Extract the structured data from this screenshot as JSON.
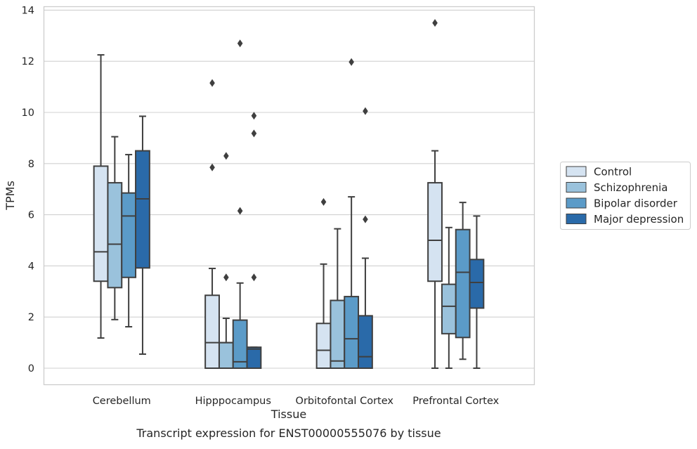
{
  "chart_data": {
    "type": "box",
    "title": "Transcript expression for ENST00000555076 by tissue",
    "xlabel": "Tissue",
    "ylabel": "TPMs",
    "ylim": [
      -0.65,
      14.15
    ],
    "yticks": [
      0,
      2,
      4,
      6,
      8,
      10,
      12,
      14
    ],
    "grid": "horizontal",
    "legend_position": "right",
    "categories": [
      "Cerebellum",
      "Hipppocampus",
      "Orbitofontal Cortex",
      "Prefrontal Cortex"
    ],
    "series": [
      {
        "name": "Control",
        "color": "#d5e3f1",
        "boxes": [
          {
            "whisker_low": 1.18,
            "q1": 3.4,
            "median": 4.55,
            "q3": 7.9,
            "whisker_high": 12.25,
            "outliers": []
          },
          {
            "whisker_low": 0,
            "q1": 0,
            "median": 1.0,
            "q3": 2.85,
            "whisker_high": 3.9,
            "outliers": [
              7.85,
              11.15
            ]
          },
          {
            "whisker_low": 0,
            "q1": 0,
            "median": 0.7,
            "q3": 1.75,
            "whisker_high": 4.07,
            "outliers": [
              6.5
            ]
          },
          {
            "whisker_low": 0,
            "q1": 3.4,
            "median": 5.0,
            "q3": 7.25,
            "whisker_high": 8.5,
            "outliers": [
              13.5
            ]
          }
        ]
      },
      {
        "name": "Schizophrenia",
        "color": "#9ac2dc",
        "boxes": [
          {
            "whisker_low": 1.9,
            "q1": 3.15,
            "median": 4.85,
            "q3": 7.25,
            "whisker_high": 9.05,
            "outliers": []
          },
          {
            "whisker_low": 0,
            "q1": 0,
            "median": 1.0,
            "q3": 1.0,
            "whisker_high": 1.95,
            "outliers": [
              3.55,
              8.3
            ]
          },
          {
            "whisker_low": 0,
            "q1": 0,
            "median": 0.28,
            "q3": 2.65,
            "whisker_high": 5.45,
            "outliers": []
          },
          {
            "whisker_low": 0,
            "q1": 1.35,
            "median": 2.42,
            "q3": 3.28,
            "whisker_high": 5.5,
            "outliers": []
          }
        ]
      },
      {
        "name": "Bipolar disorder",
        "color": "#5b9bc8",
        "boxes": [
          {
            "whisker_low": 1.62,
            "q1": 3.55,
            "median": 5.95,
            "q3": 6.85,
            "whisker_high": 8.35,
            "outliers": []
          },
          {
            "whisker_low": 0,
            "q1": 0,
            "median": 0.25,
            "q3": 1.88,
            "whisker_high": 3.33,
            "outliers": [
              6.15,
              12.7
            ]
          },
          {
            "whisker_low": 0,
            "q1": 0,
            "median": 1.15,
            "q3": 2.8,
            "whisker_high": 6.7,
            "outliers": [
              11.97
            ]
          },
          {
            "whisker_low": 0.35,
            "q1": 1.2,
            "median": 3.75,
            "q3": 5.42,
            "whisker_high": 6.48,
            "outliers": []
          }
        ]
      },
      {
        "name": "Major depression",
        "color": "#2a6aa9",
        "boxes": [
          {
            "whisker_low": 0.55,
            "q1": 3.92,
            "median": 6.62,
            "q3": 8.5,
            "whisker_high": 9.85,
            "outliers": []
          },
          {
            "whisker_low": 0,
            "q1": 0,
            "median": 0.75,
            "q3": 0.82,
            "whisker_high": 0.82,
            "outliers": [
              3.55,
              9.18,
              9.87
            ]
          },
          {
            "whisker_low": 0,
            "q1": 0,
            "median": 0.45,
            "q3": 2.05,
            "whisker_high": 4.3,
            "outliers": [
              5.82,
              10.05
            ]
          },
          {
            "whisker_low": 0,
            "q1": 2.35,
            "median": 3.35,
            "q3": 4.25,
            "whisker_high": 5.95,
            "outliers": []
          }
        ]
      }
    ]
  }
}
